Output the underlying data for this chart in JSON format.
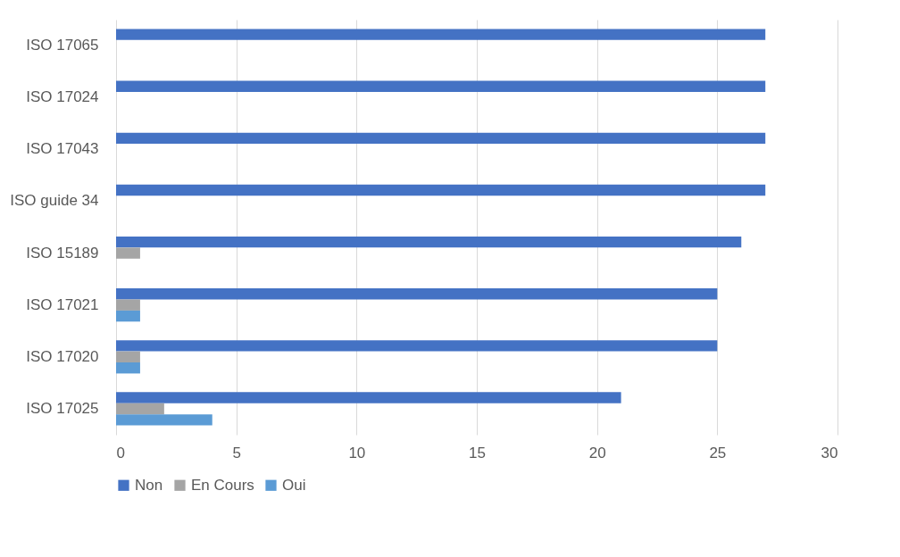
{
  "chart_data": {
    "type": "bar",
    "orientation": "horizontal",
    "categories": [
      "ISO 17065",
      "ISO 17024",
      "ISO 17043",
      "ISO guide 34",
      "ISO 15189",
      "ISO 17021",
      "ISO 17020",
      "ISO 17025"
    ],
    "series": [
      {
        "name": "Non",
        "color": "#4472c4",
        "values": [
          27,
          27,
          27,
          27,
          26,
          25,
          25,
          21
        ]
      },
      {
        "name": "En Cours",
        "color": "#a5a5a5",
        "values": [
          null,
          null,
          null,
          null,
          1,
          1,
          1,
          2
        ]
      },
      {
        "name": "Oui",
        "color": "#5b9bd5",
        "values": [
          null,
          null,
          null,
          null,
          null,
          1,
          1,
          4
        ]
      }
    ],
    "xlim": [
      0,
      30
    ],
    "xticks": [
      0,
      5,
      10,
      15,
      20,
      25,
      30
    ],
    "grid": "x",
    "legend": "bottom"
  }
}
